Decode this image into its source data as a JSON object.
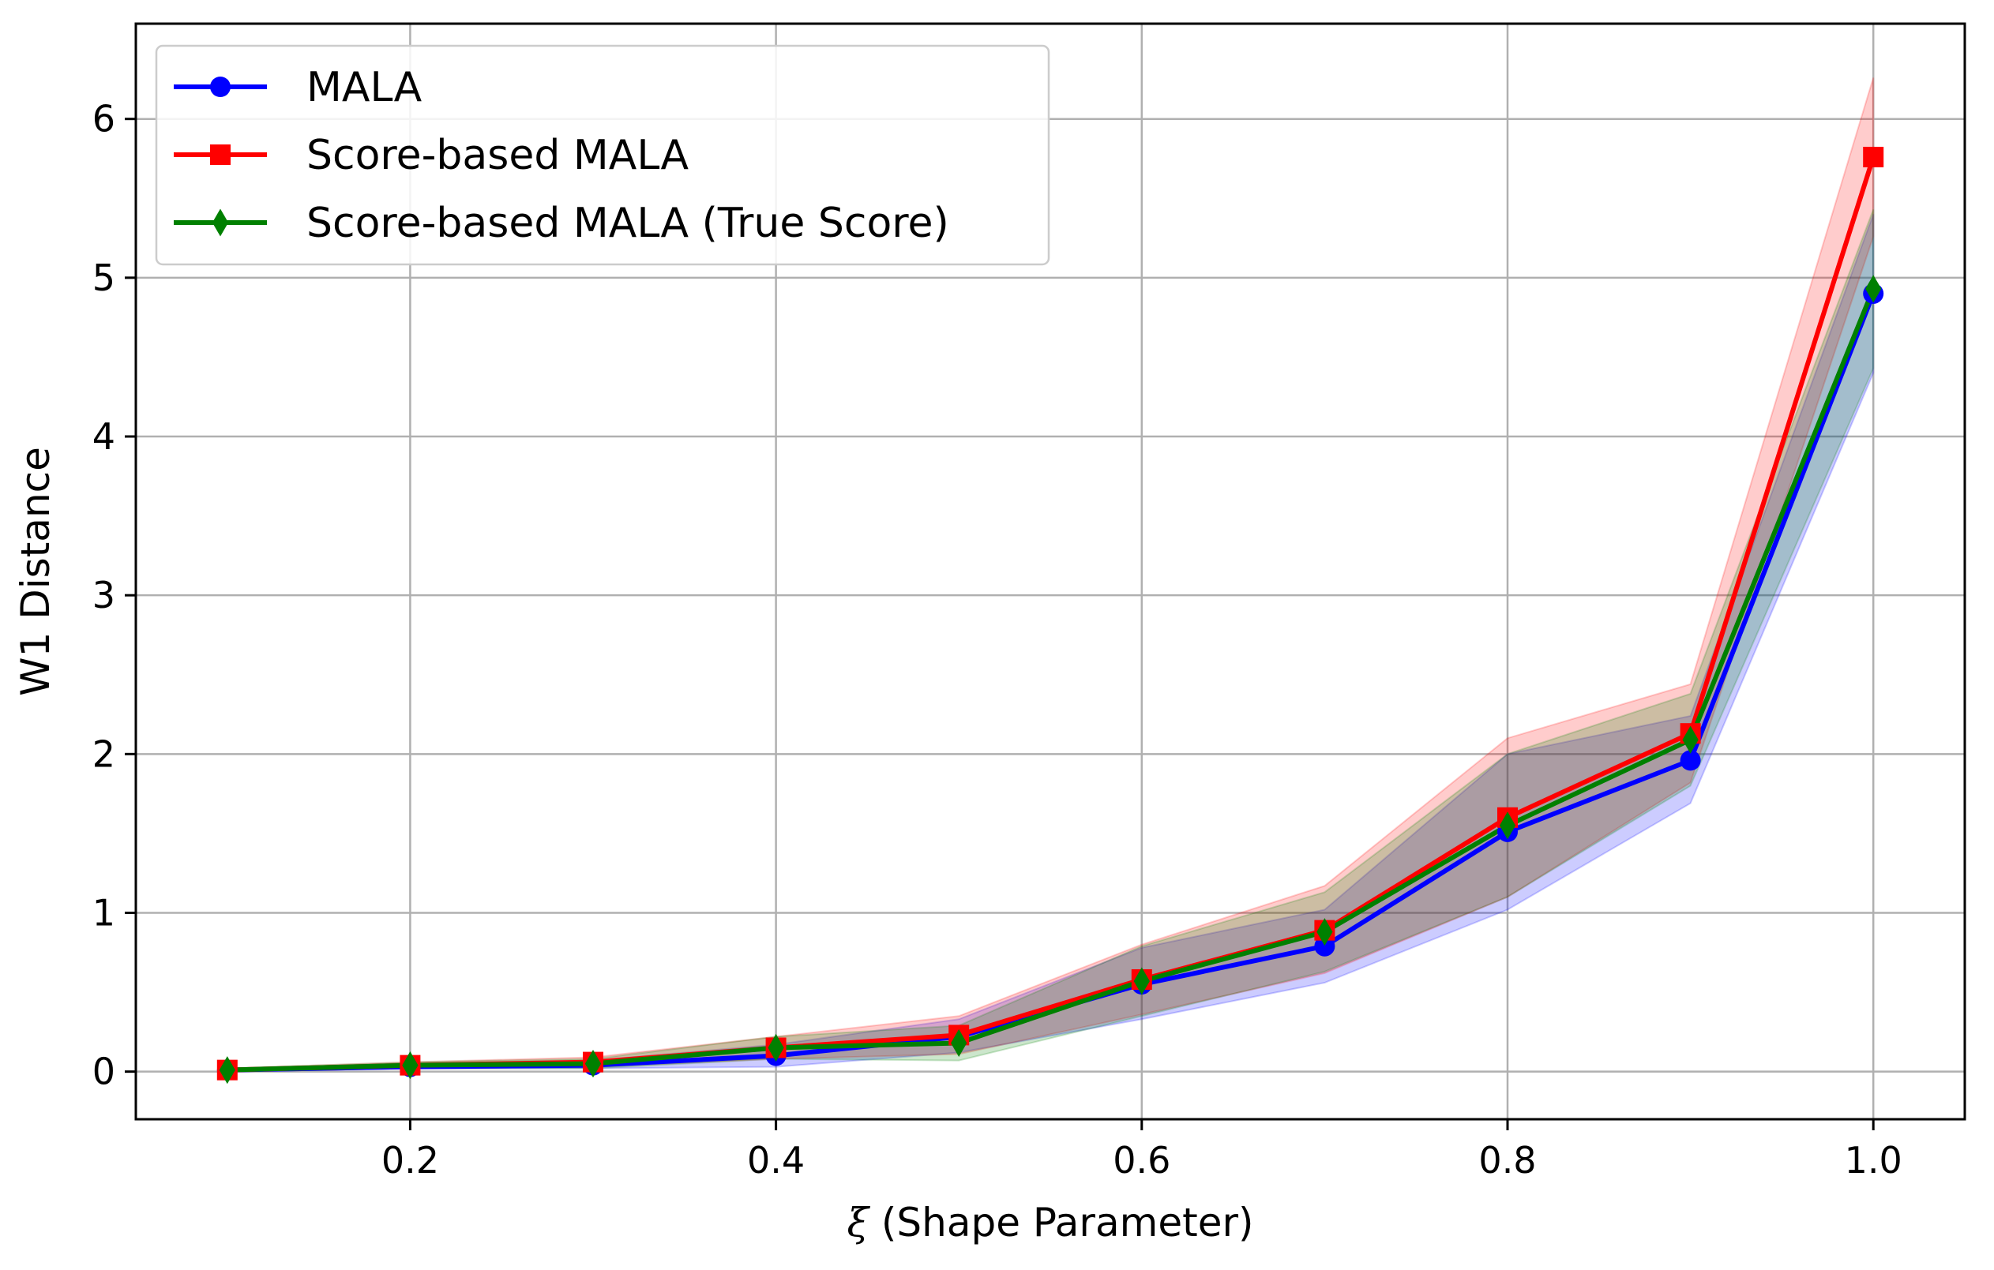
{
  "chart_data": {
    "type": "line",
    "title": "",
    "xlabel_symbol": "ξ",
    "xlabel_rest": " (Shape Parameter)",
    "ylabel": "W1 Distance",
    "x": [
      0.1,
      0.2,
      0.3,
      0.4,
      0.5,
      0.6,
      0.7,
      0.8,
      0.9,
      1.0
    ],
    "xlim": [
      0.05,
      1.05
    ],
    "ylim": [
      -0.3,
      6.6
    ],
    "xticks": [
      0.2,
      0.4,
      0.6,
      0.8,
      1.0
    ],
    "xtick_labels": [
      "0.2",
      "0.4",
      "0.6",
      "0.8",
      "1.0"
    ],
    "yticks": [
      0,
      1,
      2,
      3,
      4,
      5,
      6
    ],
    "ytick_labels": [
      "0",
      "1",
      "2",
      "3",
      "4",
      "5",
      "6"
    ],
    "grid": true,
    "legend_position": "upper-left",
    "series": [
      {
        "name": "MALA",
        "color": "#0000ff",
        "marker": "circle",
        "values": [
          0.01,
          0.03,
          0.04,
          0.1,
          0.22,
          0.55,
          0.79,
          1.51,
          1.96,
          4.9
        ],
        "lower": [
          0.0,
          0.02,
          0.02,
          0.03,
          0.12,
          0.33,
          0.56,
          1.02,
          1.69,
          4.4
        ],
        "upper": [
          0.02,
          0.05,
          0.07,
          0.17,
          0.33,
          0.78,
          1.02,
          2.0,
          2.24,
          5.4
        ]
      },
      {
        "name": "Score-based MALA",
        "color": "#ff0000",
        "marker": "square",
        "values": [
          0.01,
          0.04,
          0.06,
          0.15,
          0.23,
          0.58,
          0.89,
          1.6,
          2.13,
          5.76
        ],
        "lower": [
          0.0,
          0.02,
          0.03,
          0.08,
          0.11,
          0.36,
          0.62,
          1.1,
          1.82,
          5.26
        ],
        "upper": [
          0.02,
          0.06,
          0.09,
          0.22,
          0.35,
          0.8,
          1.17,
          2.1,
          2.44,
          6.26
        ]
      },
      {
        "name": "Score-based MALA (True Score)",
        "color": "#008000",
        "marker": "diamond",
        "values": [
          0.01,
          0.04,
          0.05,
          0.15,
          0.18,
          0.57,
          0.88,
          1.55,
          2.09,
          4.93
        ],
        "lower": [
          0.0,
          0.02,
          0.02,
          0.08,
          0.07,
          0.35,
          0.63,
          1.1,
          1.8,
          4.43
        ],
        "upper": [
          0.02,
          0.06,
          0.08,
          0.22,
          0.29,
          0.79,
          1.13,
          2.0,
          2.38,
          5.43
        ]
      }
    ]
  }
}
